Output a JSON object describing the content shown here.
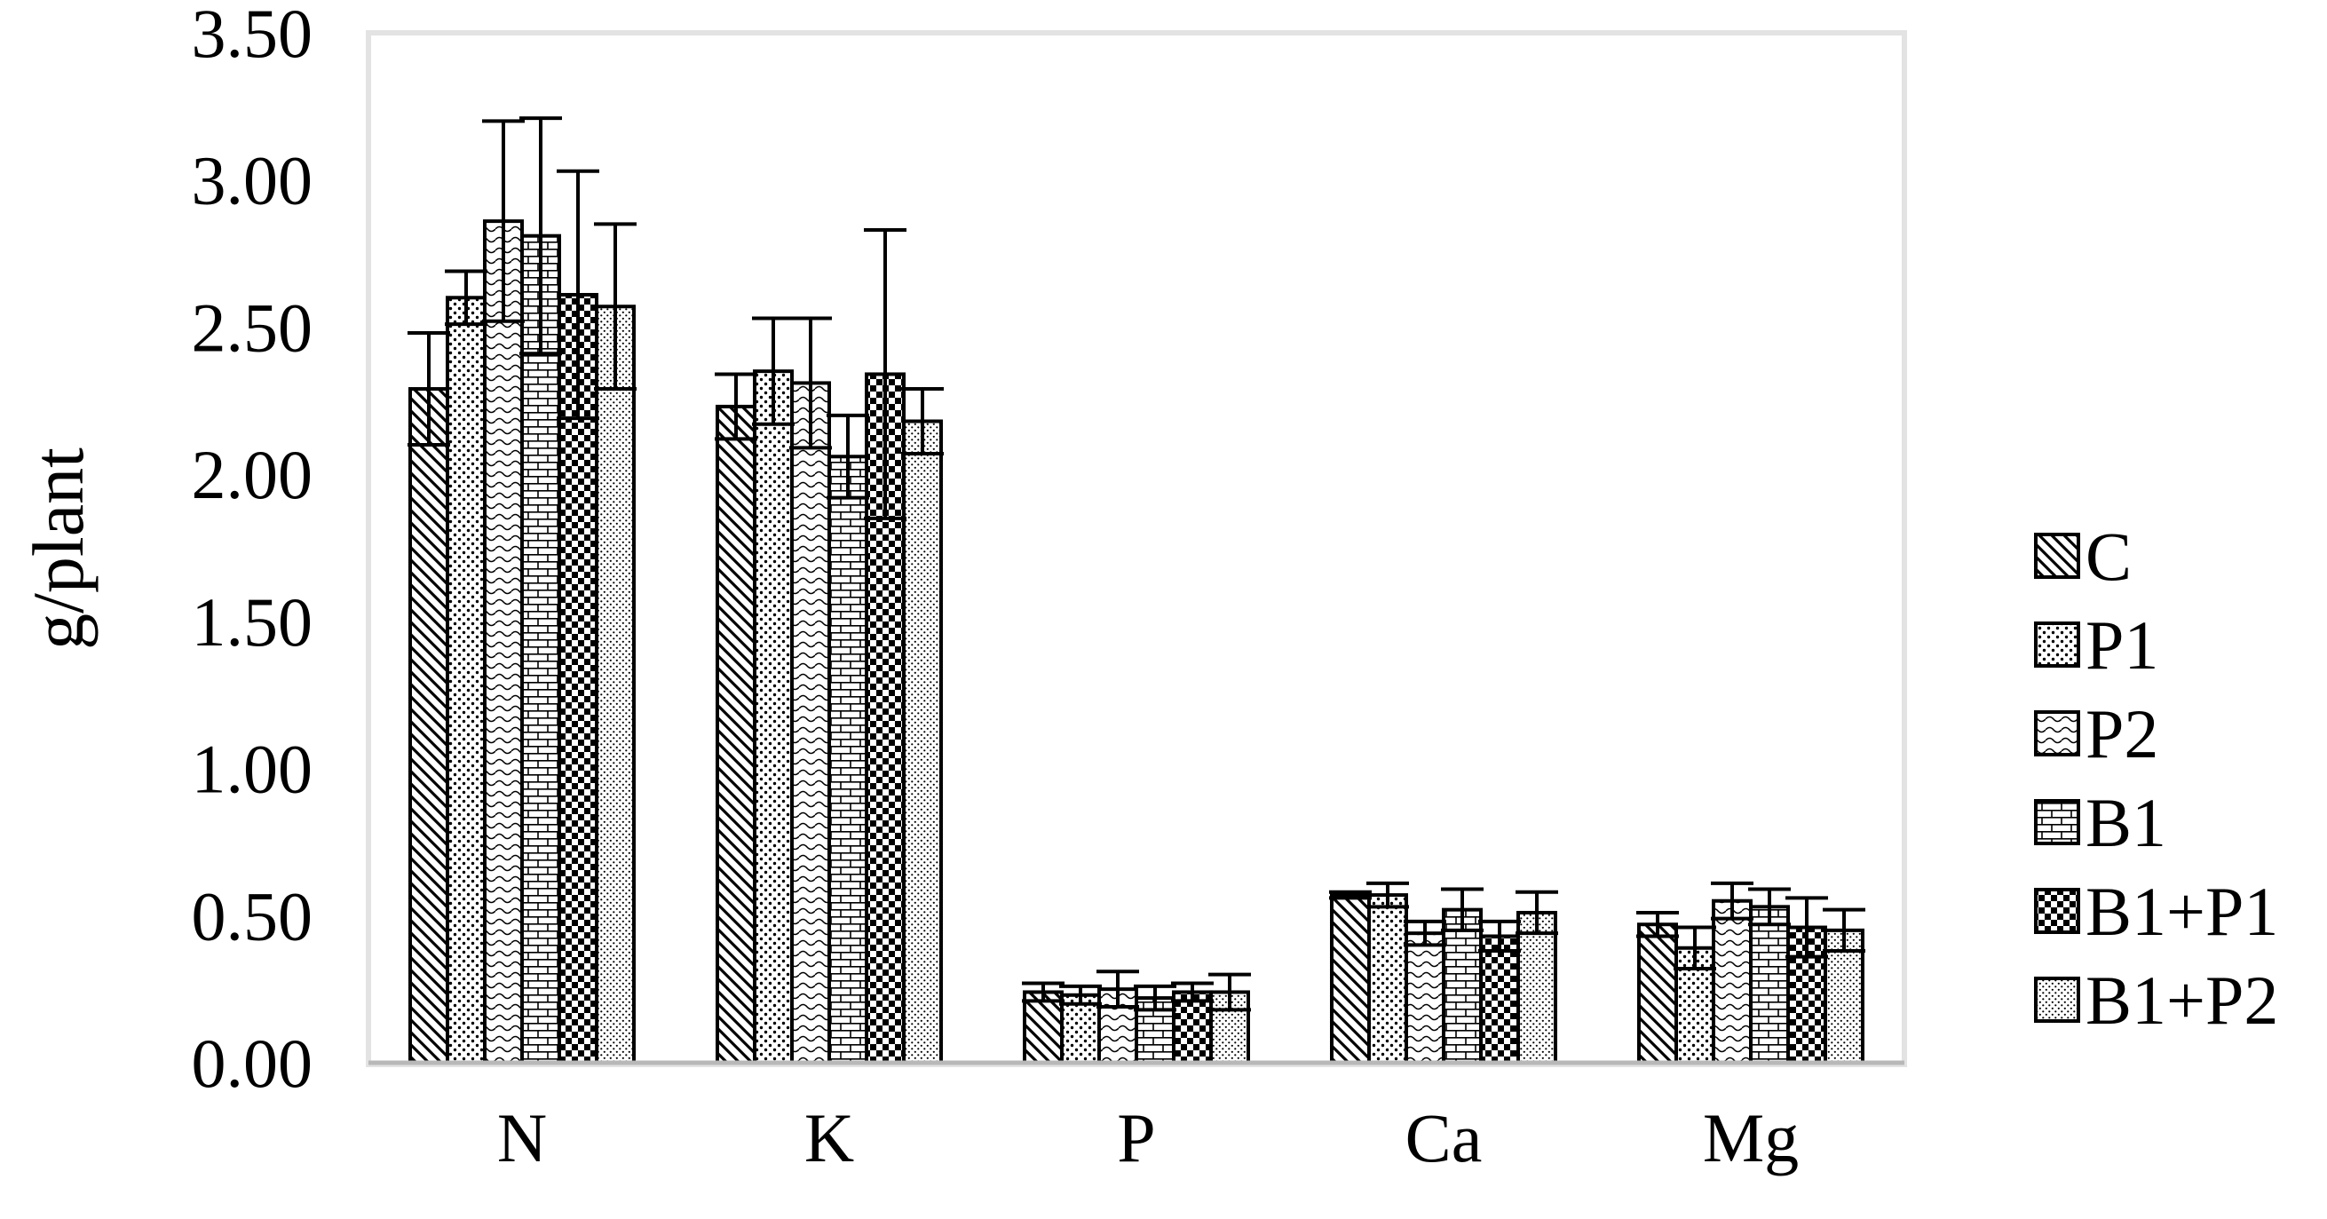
{
  "chart_data": {
    "type": "bar",
    "title": "",
    "xlabel": "",
    "ylabel": "g/plant",
    "ylim": [
      0,
      3.5
    ],
    "yticks": [
      "0.00",
      "0.50",
      "1.00",
      "1.50",
      "2.00",
      "2.50",
      "3.00",
      "3.50"
    ],
    "grid": false,
    "legend_position": "right",
    "categories": [
      "N",
      "K",
      "P",
      "Ca",
      "Mg"
    ],
    "series": [
      {
        "name": "C",
        "pattern": "diagonal-hatch",
        "values": [
          2.29,
          2.23,
          0.24,
          0.57,
          0.47
        ],
        "errors": [
          0.19,
          0.11,
          0.03,
          0.01,
          0.04
        ]
      },
      {
        "name": "P1",
        "pattern": "dots",
        "values": [
          2.6,
          2.35,
          0.23,
          0.57,
          0.39
        ],
        "errors": [
          0.09,
          0.18,
          0.03,
          0.04,
          0.07
        ]
      },
      {
        "name": "P2",
        "pattern": "waves",
        "values": [
          2.86,
          2.31,
          0.25,
          0.44,
          0.55
        ],
        "errors": [
          0.34,
          0.22,
          0.06,
          0.04,
          0.06
        ]
      },
      {
        "name": "B1",
        "pattern": "bricks",
        "values": [
          2.81,
          2.06,
          0.22,
          0.52,
          0.53
        ],
        "errors": [
          0.4,
          0.14,
          0.04,
          0.07,
          0.06
        ]
      },
      {
        "name": "B1+P1",
        "pattern": "checker",
        "values": [
          2.61,
          2.34,
          0.24,
          0.43,
          0.46
        ],
        "errors": [
          0.42,
          0.49,
          0.03,
          0.05,
          0.1
        ]
      },
      {
        "name": "B1+P2",
        "pattern": "fine-dots",
        "values": [
          2.57,
          2.18,
          0.24,
          0.51,
          0.45
        ],
        "errors": [
          0.28,
          0.11,
          0.06,
          0.07,
          0.07
        ]
      }
    ]
  }
}
